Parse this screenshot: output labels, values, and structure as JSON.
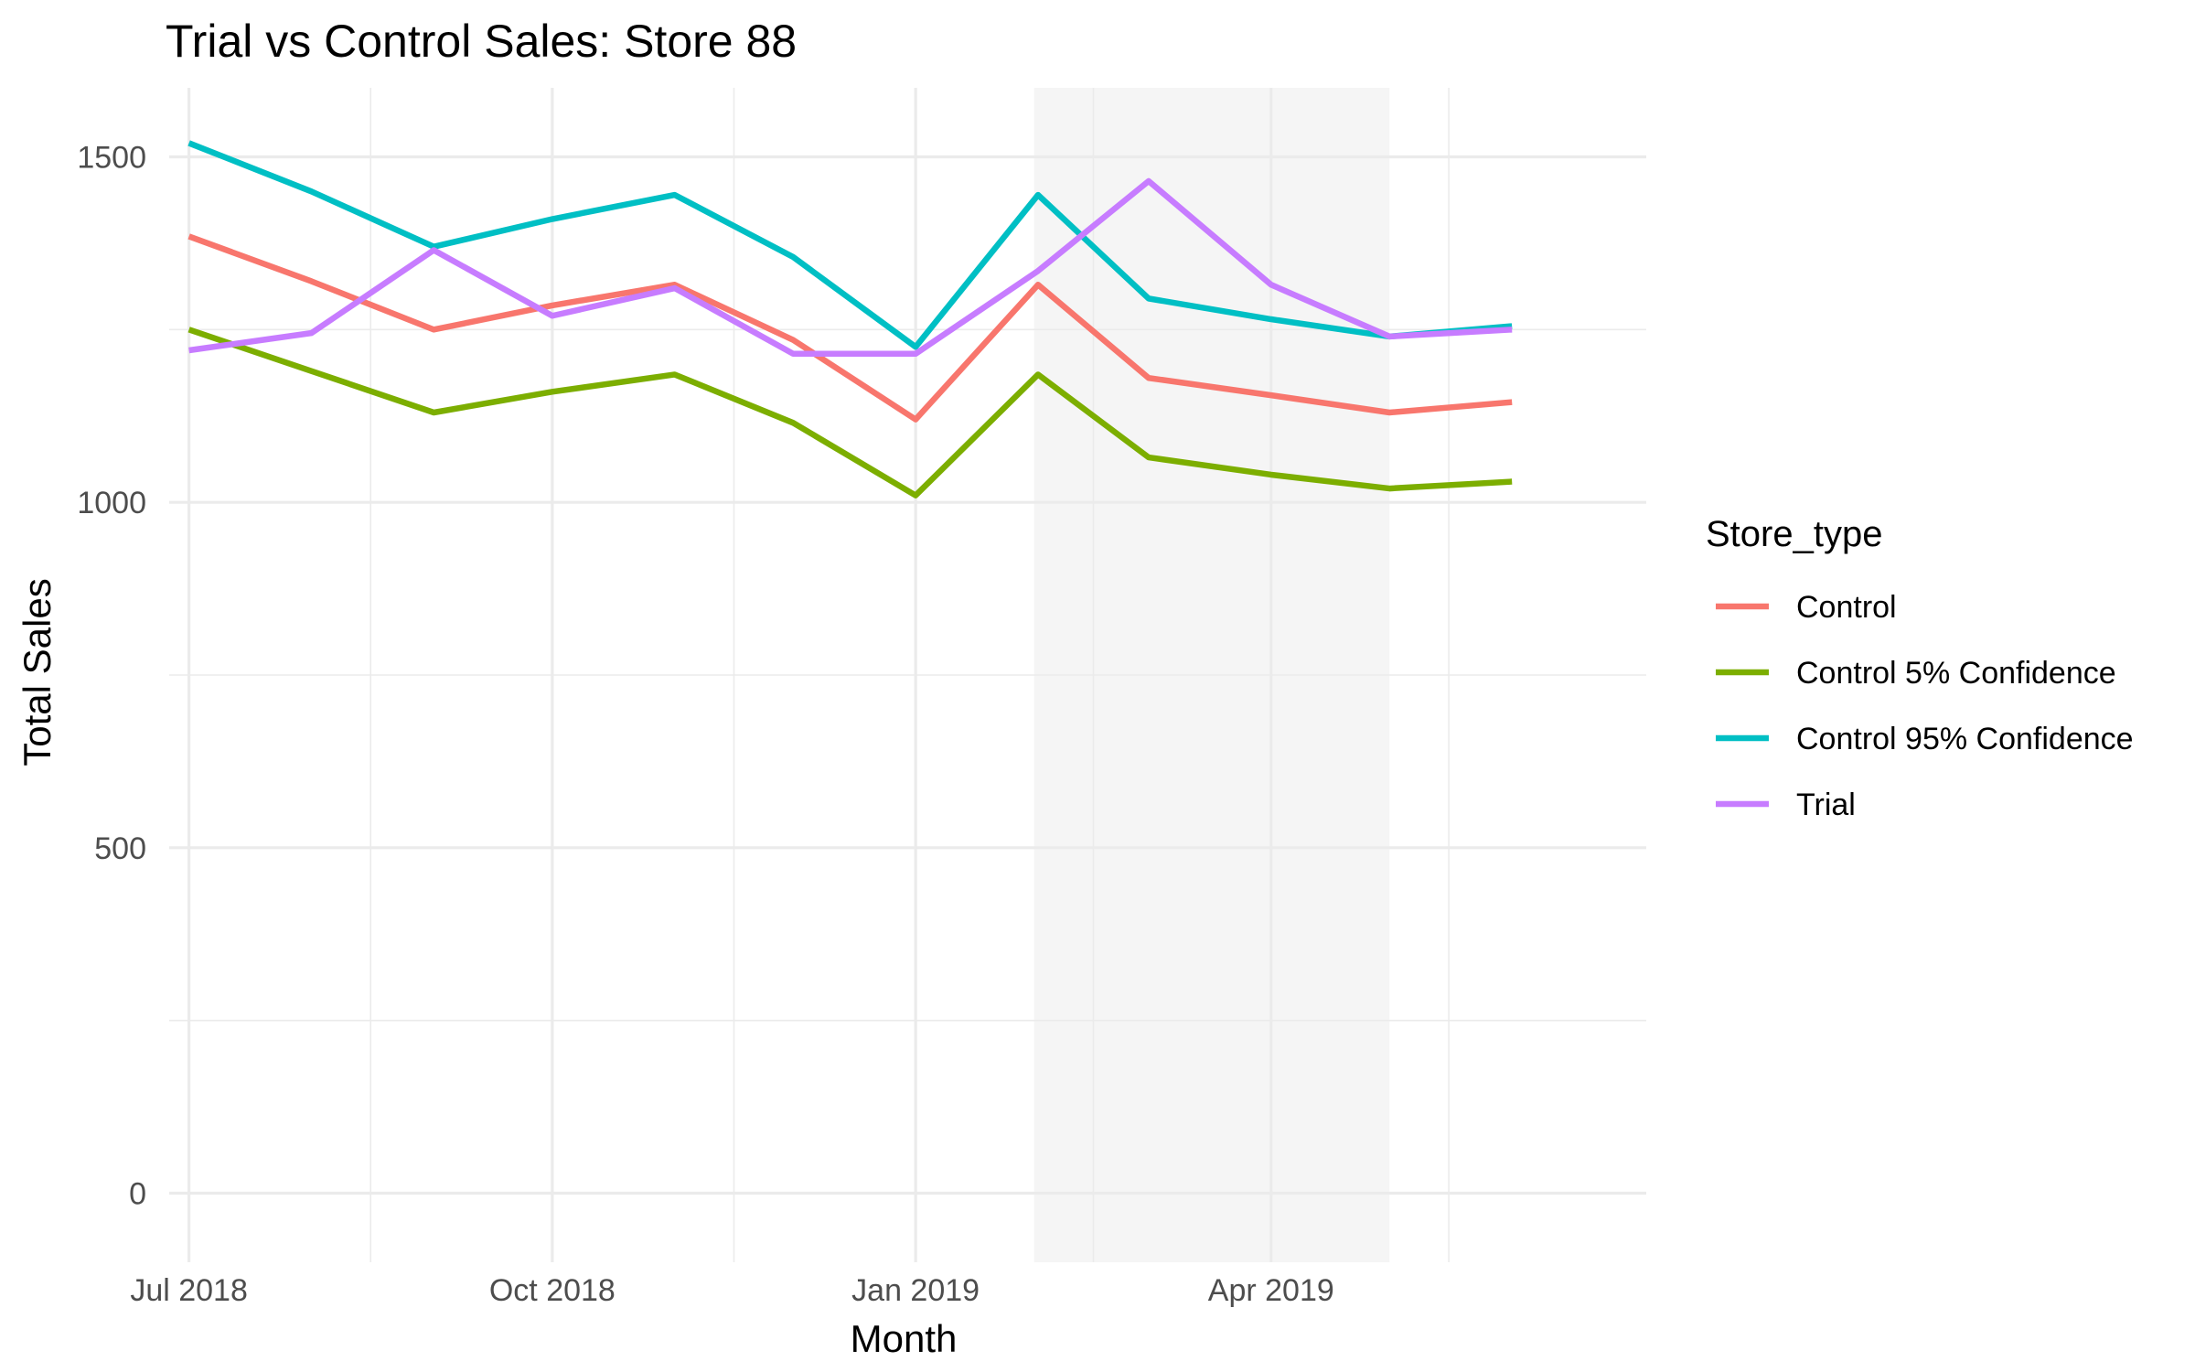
{
  "chart_data": {
    "type": "line",
    "title": "Trial vs Control Sales: Store 88",
    "xlabel": "Month",
    "ylabel": "Total Sales",
    "x": [
      "2018-07",
      "2018-08",
      "2018-09",
      "2018-10",
      "2018-11",
      "2018-12",
      "2019-01",
      "2019-02",
      "2019-03",
      "2019-04",
      "2019-05",
      "2019-06"
    ],
    "x_ticks": [
      {
        "date": "2018-07",
        "label": "Jul 2018"
      },
      {
        "date": "2018-10",
        "label": "Oct 2018"
      },
      {
        "date": "2019-01",
        "label": "Jan 2019"
      },
      {
        "date": "2019-04",
        "label": "Apr 2019"
      }
    ],
    "y_ticks": [
      0,
      500,
      1000,
      1500
    ],
    "ylim": [
      -100,
      1600
    ],
    "xlim": [
      "2018-06-26",
      "2019-07-05"
    ],
    "grid": true,
    "trial_period": {
      "start": "2019-01-31",
      "end": "2019-05-01",
      "color": "#f5f5f5"
    },
    "legend": {
      "title": "Store_type",
      "position": "right"
    },
    "series": [
      {
        "name": "Control",
        "color": "#F8766D",
        "values": [
          1385,
          1320,
          1250,
          1285,
          1315,
          1235,
          1120,
          1315,
          1180,
          1155,
          1130,
          1145
        ]
      },
      {
        "name": "Control 5% Confidence",
        "color": "#7CAE00",
        "values": [
          1250,
          1190,
          1130,
          1160,
          1185,
          1115,
          1010,
          1185,
          1065,
          1040,
          1020,
          1030
        ]
      },
      {
        "name": "Control 95% Confidence",
        "color": "#00BFC4",
        "values": [
          1520,
          1450,
          1370,
          1410,
          1445,
          1355,
          1225,
          1445,
          1295,
          1265,
          1240,
          1255
        ]
      },
      {
        "name": "Trial",
        "color": "#C77CFF",
        "values": [
          1220,
          1245,
          1365,
          1270,
          1310,
          1215,
          1215,
          1335,
          1465,
          1315,
          1240,
          1250
        ]
      }
    ]
  }
}
